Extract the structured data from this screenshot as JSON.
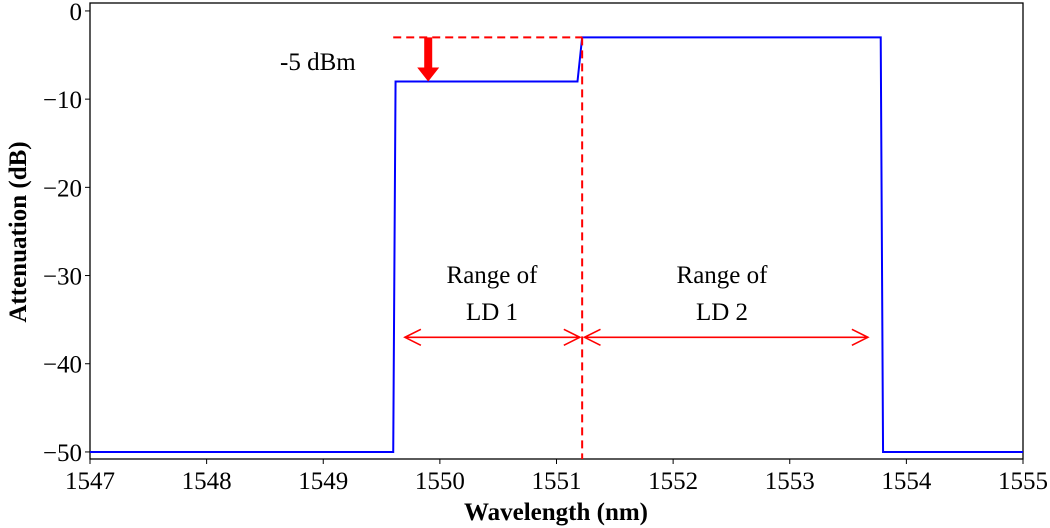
{
  "chart_data": {
    "type": "line",
    "title": "",
    "xlabel": "Wavelength (nm)",
    "ylabel": "Attenuation (dB)",
    "xlim": [
      1547,
      1555
    ],
    "ylim": [
      -50.8,
      0.9
    ],
    "xticks": [
      "1547",
      "1548",
      "1549",
      "1550",
      "1551",
      "1552",
      "1553",
      "1554",
      "1555"
    ],
    "yticks": [
      "0",
      "−10",
      "−20",
      "−30",
      "−40",
      "−50"
    ],
    "grid": false,
    "series": [
      {
        "color": "#0000ff",
        "x": [
          1547,
          1549.6,
          1549.62,
          1551.18,
          1551.22,
          1553.78,
          1553.8,
          1555
        ],
        "y": [
          -50,
          -50,
          -8,
          -8,
          -3,
          -3,
          -50,
          -50
        ]
      }
    ],
    "annotations": {
      "color": "#ff0000",
      "power_drop_label": "-5 dBm",
      "power_drop_arrow": {
        "x": 1549.9,
        "from": -3,
        "to": -8
      },
      "reference_line_y": -3,
      "divider_x": 1551.22,
      "ld1": {
        "line1": "Range of",
        "line2": "LD 1",
        "from": 1549.7,
        "to": 1551.2,
        "y": -37
      },
      "ld2": {
        "line1": "Range of",
        "line2": "LD 2",
        "from": 1551.24,
        "to": 1553.67,
        "y": -37
      }
    }
  }
}
